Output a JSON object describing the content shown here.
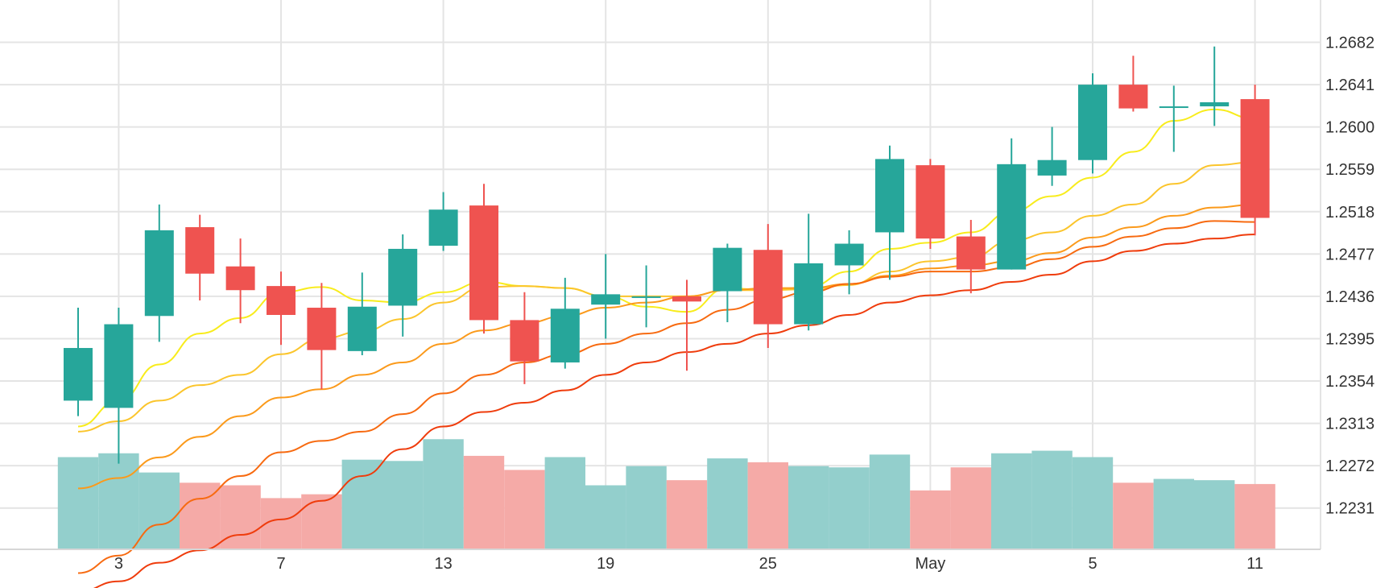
{
  "chart_data": {
    "type": "candlestick",
    "title": "",
    "xlabel": "",
    "ylabel": "",
    "x_tick_labels": [
      "3",
      "7",
      "13",
      "19",
      "25",
      "May",
      "5",
      "11"
    ],
    "y_tick_labels": [
      "1.2231",
      "1.2272",
      "1.2313",
      "1.2354",
      "1.2395",
      "1.2436",
      "1.2477",
      "1.2518",
      "1.2559",
      "1.2600",
      "1.2641",
      "1.2682"
    ],
    "ylim": [
      1.2191,
      1.2723
    ],
    "grid": true,
    "colors": {
      "up": "#26a69a",
      "down": "#ef5350",
      "volume_up": "#93cfcc",
      "volume_down": "#f5aaa7",
      "grid": "#e4e4e4",
      "ma": [
        "#f8ec1c",
        "#fbc52c",
        "#fb9a1b",
        "#f76a10",
        "#ef3c0c"
      ]
    },
    "candles": [
      {
        "open": 1.2335,
        "high": 1.2425,
        "low": 1.232,
        "close": 1.2386,
        "volume": 0.72
      },
      {
        "open": 1.2328,
        "high": 1.2425,
        "low": 1.2274,
        "close": 1.2409,
        "volume": 0.75
      },
      {
        "open": 1.2417,
        "high": 1.2525,
        "low": 1.2392,
        "close": 1.25,
        "volume": 0.6
      },
      {
        "open": 1.2503,
        "high": 1.2515,
        "low": 1.2432,
        "close": 1.2458,
        "volume": 0.52
      },
      {
        "open": 1.2465,
        "high": 1.2492,
        "low": 1.241,
        "close": 1.2442,
        "volume": 0.5
      },
      {
        "open": 1.2446,
        "high": 1.246,
        "low": 1.2389,
        "close": 1.2418,
        "volume": 0.4
      },
      {
        "open": 1.2425,
        "high": 1.2449,
        "low": 1.2346,
        "close": 1.2384,
        "volume": 0.43
      },
      {
        "open": 1.2383,
        "high": 1.2459,
        "low": 1.2379,
        "close": 1.2426,
        "volume": 0.7
      },
      {
        "open": 1.2427,
        "high": 1.2496,
        "low": 1.2397,
        "close": 1.2482,
        "volume": 0.69
      },
      {
        "open": 1.2485,
        "high": 1.2537,
        "low": 1.248,
        "close": 1.252,
        "volume": 0.86
      },
      {
        "open": 1.2524,
        "high": 1.2545,
        "low": 1.24,
        "close": 1.2413,
        "volume": 0.73
      },
      {
        "open": 1.2413,
        "high": 1.244,
        "low": 1.2351,
        "close": 1.2373,
        "volume": 0.62
      },
      {
        "open": 1.2372,
        "high": 1.2454,
        "low": 1.2366,
        "close": 1.2424,
        "volume": 0.72
      },
      {
        "open": 1.2428,
        "high": 1.2477,
        "low": 1.2395,
        "close": 1.2438,
        "volume": 0.5
      },
      {
        "open": 1.2436,
        "high": 1.2466,
        "low": 1.2406,
        "close": 1.2436,
        "volume": 0.65
      },
      {
        "open": 1.2436,
        "high": 1.2452,
        "low": 1.2364,
        "close": 1.2431,
        "volume": 0.54
      },
      {
        "open": 1.2441,
        "high": 1.2487,
        "low": 1.2411,
        "close": 1.2483,
        "volume": 0.71
      },
      {
        "open": 1.2481,
        "high": 1.2506,
        "low": 1.2386,
        "close": 1.2409,
        "volume": 0.68
      },
      {
        "open": 1.2409,
        "high": 1.2516,
        "low": 1.2403,
        "close": 1.2468,
        "volume": 0.65
      },
      {
        "open": 1.2466,
        "high": 1.25,
        "low": 1.2438,
        "close": 1.2487,
        "volume": 0.64
      },
      {
        "open": 1.2498,
        "high": 1.2582,
        "low": 1.2452,
        "close": 1.2569,
        "volume": 0.74
      },
      {
        "open": 1.2563,
        "high": 1.2569,
        "low": 1.2482,
        "close": 1.2492,
        "volume": 0.46
      },
      {
        "open": 1.2494,
        "high": 1.251,
        "low": 1.2439,
        "close": 1.2462,
        "volume": 0.64
      },
      {
        "open": 1.2462,
        "high": 1.2589,
        "low": 1.2462,
        "close": 1.2564,
        "volume": 0.75
      },
      {
        "open": 1.2553,
        "high": 1.26,
        "low": 1.2543,
        "close": 1.2568,
        "volume": 0.77
      },
      {
        "open": 1.2568,
        "high": 1.2652,
        "low": 1.2555,
        "close": 1.2641,
        "volume": 0.72
      },
      {
        "open": 1.2641,
        "high": 1.2669,
        "low": 1.2615,
        "close": 1.2618,
        "volume": 0.52
      },
      {
        "open": 1.2619,
        "high": 1.264,
        "low": 1.2576,
        "close": 1.262,
        "volume": 0.55
      },
      {
        "open": 1.262,
        "high": 1.2678,
        "low": 1.2601,
        "close": 1.2624,
        "volume": 0.54
      },
      {
        "open": 1.2627,
        "high": 1.2641,
        "low": 1.2495,
        "close": 1.2512,
        "volume": 0.51
      }
    ],
    "moving_averages": [
      {
        "values": [
          1.231,
          1.2335,
          1.237,
          1.24,
          1.2415,
          1.244,
          1.2445,
          1.2432,
          1.243,
          1.244,
          1.245,
          1.2446,
          1.2444,
          1.2436,
          1.2426,
          1.2421,
          1.2444,
          1.2442,
          1.2445,
          1.246,
          1.2482,
          1.2488,
          1.2498,
          1.2518,
          1.2533,
          1.2551,
          1.2576,
          1.2606,
          1.2617,
          1.2608
        ]
      },
      {
        "values": [
          1.2305,
          1.2315,
          1.2335,
          1.235,
          1.236,
          1.238,
          1.2395,
          1.2402,
          1.2414,
          1.243,
          1.2445,
          1.2446,
          1.2444,
          1.2436,
          1.2436,
          1.2436,
          1.2442,
          1.2442,
          1.2443,
          1.2447,
          1.246,
          1.247,
          1.2474,
          1.249,
          1.2498,
          1.2514,
          1.2525,
          1.2545,
          1.2563,
          1.2566
        ]
      },
      {
        "values": [
          1.225,
          1.226,
          1.228,
          1.23,
          1.232,
          1.2338,
          1.2346,
          1.236,
          1.2372,
          1.239,
          1.2403,
          1.241,
          1.2417,
          1.2425,
          1.243,
          1.2436,
          1.2442,
          1.2444,
          1.2444,
          1.2448,
          1.2456,
          1.2463,
          1.2466,
          1.247,
          1.2478,
          1.2493,
          1.2503,
          1.2514,
          1.2522,
          1.2525
        ]
      },
      {
        "values": [
          1.2168,
          1.2185,
          1.2215,
          1.224,
          1.2262,
          1.2285,
          1.2296,
          1.2305,
          1.2322,
          1.2342,
          1.236,
          1.2372,
          1.238,
          1.239,
          1.24,
          1.241,
          1.2423,
          1.2433,
          1.244,
          1.2448,
          1.2455,
          1.246,
          1.246,
          1.2464,
          1.2472,
          1.2484,
          1.2494,
          1.2502,
          1.2509,
          1.2508
        ]
      },
      {
        "values": [
          1.215,
          1.216,
          1.2178,
          1.219,
          1.2205,
          1.222,
          1.2238,
          1.2262,
          1.2288,
          1.231,
          1.2324,
          1.2333,
          1.2345,
          1.236,
          1.2372,
          1.2382,
          1.239,
          1.24,
          1.2408,
          1.2418,
          1.243,
          1.2437,
          1.2442,
          1.245,
          1.2457,
          1.247,
          1.248,
          1.2487,
          1.2492,
          1.2496
        ]
      }
    ]
  }
}
